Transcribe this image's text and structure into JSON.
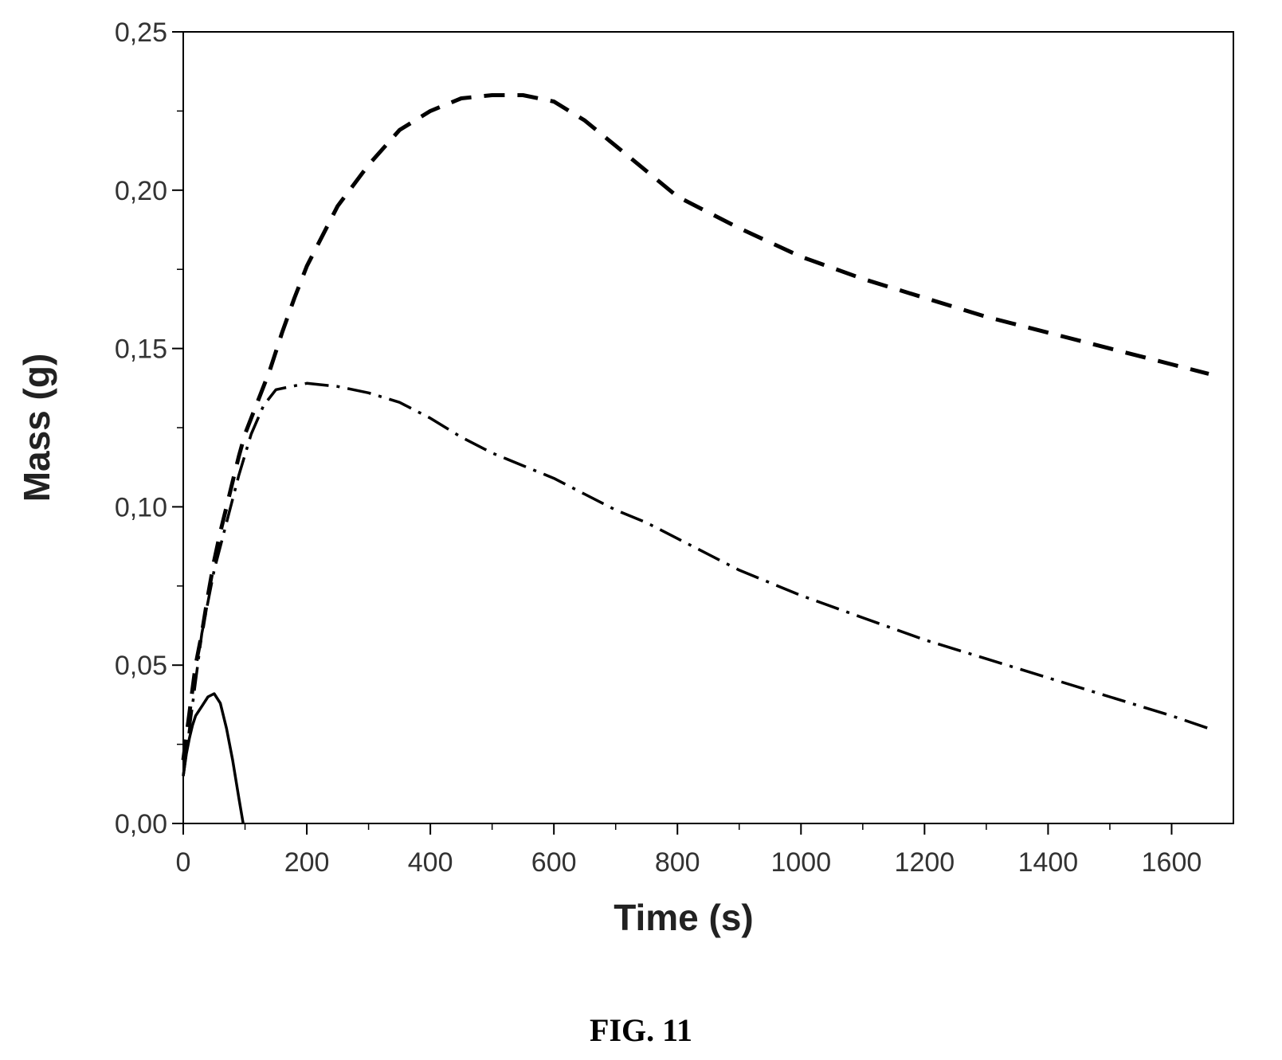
{
  "figure_label": "FIG. 11",
  "chart_data": {
    "type": "line",
    "title": "",
    "xlabel": "Time (s)",
    "ylabel": "Mass (g)",
    "xlim": [
      0,
      1700
    ],
    "ylim": [
      0,
      0.25
    ],
    "x_ticks": [
      0,
      200,
      400,
      600,
      800,
      1000,
      1200,
      1400,
      1600
    ],
    "x_tick_labels": [
      "0",
      "200",
      "400",
      "600",
      "800",
      "1000",
      "1200",
      "1400",
      "1600"
    ],
    "y_ticks": [
      0,
      0.05,
      0.1,
      0.15,
      0.2,
      0.25
    ],
    "y_tick_labels": [
      "0,00",
      "0,05",
      "0,10",
      "0,15",
      "0,20",
      "0,25"
    ],
    "legend": "none",
    "grid": false,
    "color": "#000000",
    "series": [
      {
        "style": "dash",
        "x": [
          0,
          10,
          20,
          30,
          40,
          50,
          60,
          70,
          80,
          90,
          100,
          120,
          140,
          160,
          180,
          200,
          250,
          300,
          350,
          400,
          450,
          500,
          550,
          600,
          650,
          700,
          750,
          800,
          900,
          1000,
          1100,
          1200,
          1300,
          1400,
          1500,
          1600,
          1660
        ],
        "y": [
          0.02,
          0.035,
          0.05,
          0.06,
          0.072,
          0.083,
          0.092,
          0.1,
          0.108,
          0.116,
          0.123,
          0.133,
          0.143,
          0.155,
          0.166,
          0.176,
          0.195,
          0.208,
          0.219,
          0.225,
          0.229,
          0.23,
          0.23,
          0.228,
          0.222,
          0.214,
          0.206,
          0.198,
          0.188,
          0.179,
          0.172,
          0.166,
          0.16,
          0.155,
          0.15,
          0.145,
          0.142
        ]
      },
      {
        "style": "dash-dot",
        "x": [
          0,
          10,
          20,
          30,
          50,
          70,
          90,
          110,
          130,
          150,
          175,
          200,
          250,
          300,
          350,
          400,
          450,
          500,
          550,
          600,
          650,
          700,
          750,
          800,
          900,
          1000,
          1100,
          1200,
          1300,
          1400,
          1500,
          1600,
          1660
        ],
        "y": [
          0.015,
          0.03,
          0.045,
          0.06,
          0.08,
          0.095,
          0.11,
          0.123,
          0.132,
          0.137,
          0.138,
          0.139,
          0.138,
          0.136,
          0.133,
          0.128,
          0.122,
          0.117,
          0.113,
          0.109,
          0.104,
          0.099,
          0.095,
          0.09,
          0.08,
          0.072,
          0.065,
          0.058,
          0.052,
          0.046,
          0.04,
          0.034,
          0.03
        ]
      },
      {
        "style": "solid",
        "x": [
          0,
          5,
          10,
          15,
          20,
          30,
          40,
          50,
          60,
          70,
          80,
          90,
          97
        ],
        "y": [
          0.015,
          0.022,
          0.027,
          0.031,
          0.034,
          0.037,
          0.04,
          0.041,
          0.038,
          0.03,
          0.02,
          0.008,
          0.0
        ]
      }
    ]
  }
}
